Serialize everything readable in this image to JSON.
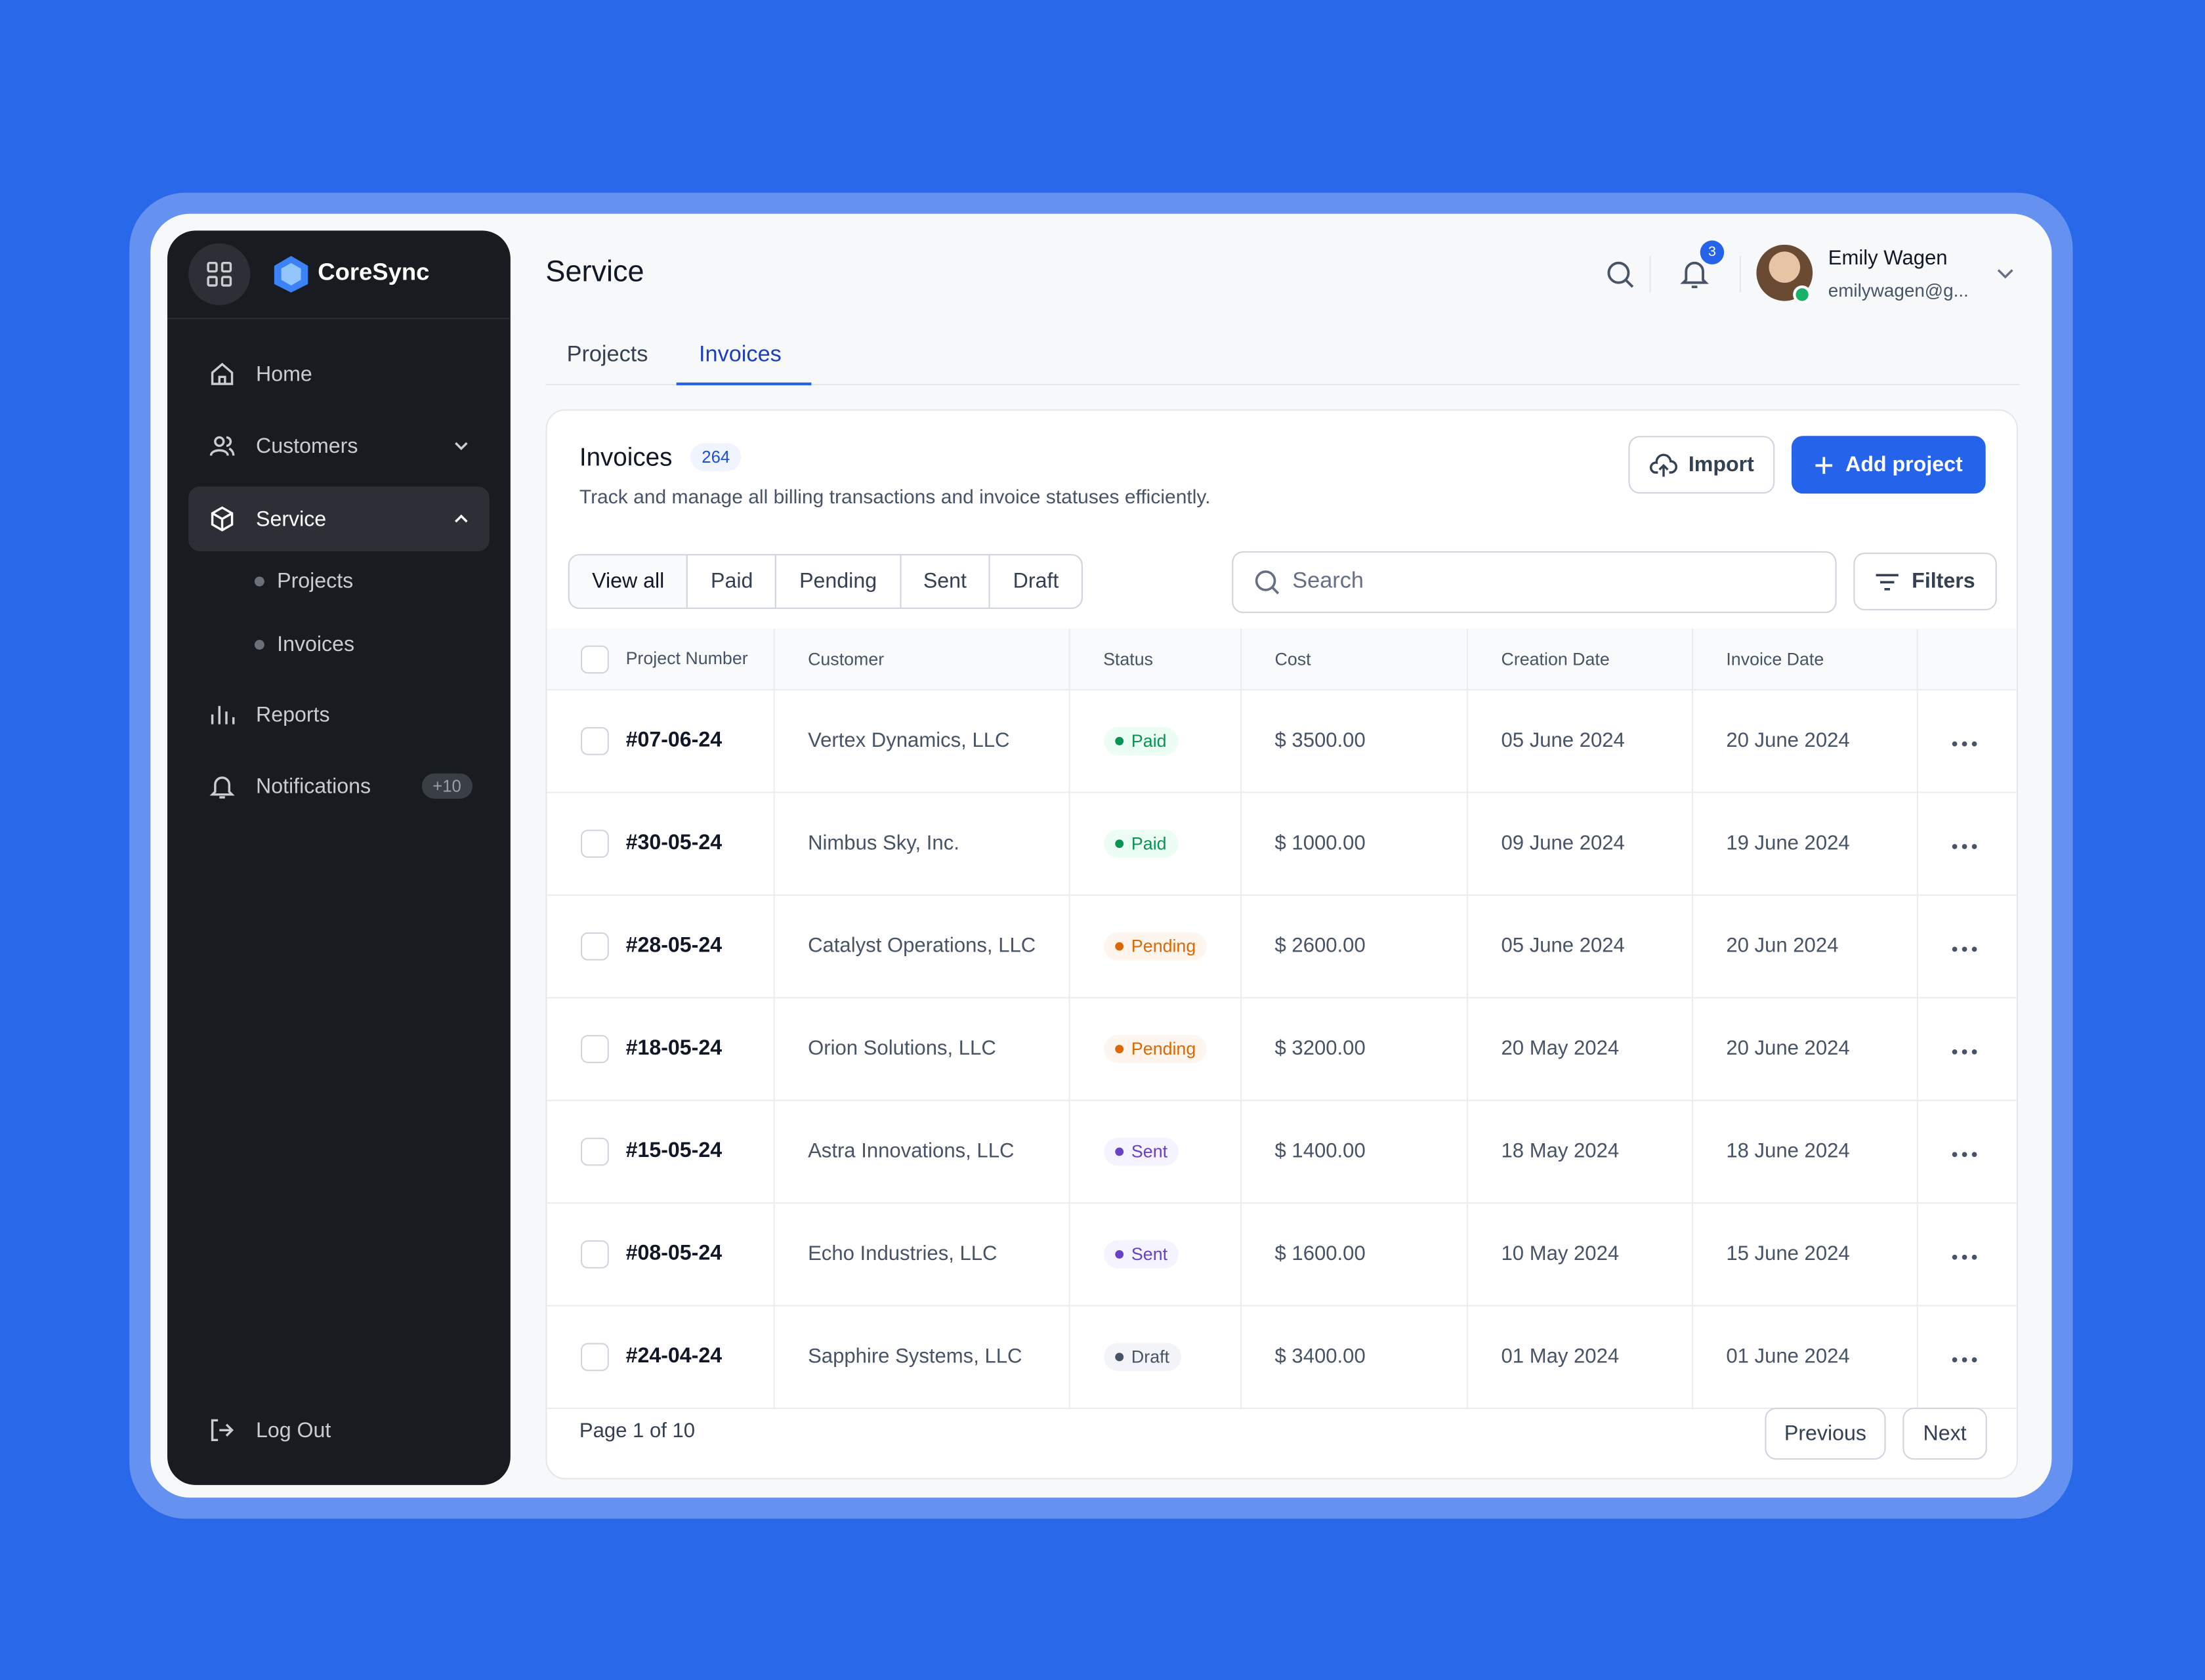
{
  "sidebar": {
    "brand": "CoreSync",
    "nav": [
      {
        "label": "Home"
      },
      {
        "label": "Customers"
      },
      {
        "label": "Service",
        "children": [
          "Projects",
          "Invoices"
        ]
      },
      {
        "label": "Reports"
      },
      {
        "label": "Notifications",
        "badge": "+10"
      }
    ],
    "logout": "Log Out"
  },
  "header": {
    "title": "Service",
    "notification_count": 3,
    "user": {
      "name": "Emily Wagen",
      "email": "emilywagen@g..."
    }
  },
  "tabs": [
    "Projects",
    "Invoices"
  ],
  "panel": {
    "title": "Invoices",
    "count": 264,
    "description": "Track and manage all billing transactions and invoice statuses efficiently.",
    "import_button": "Import",
    "add_button": "Add project",
    "filters": [
      "View all",
      "Paid",
      "Pending",
      "Sent",
      "Draft"
    ],
    "search_placeholder": "Search",
    "filters_button": "Filters"
  },
  "table": {
    "columns": [
      "Project Number",
      "Customer",
      "Status",
      "Cost",
      "Creation Date",
      "Invoice Date"
    ],
    "rows": [
      {
        "cells": [
          "#07-06-24",
          "Vertex Dynamics, LLC",
          "Paid",
          "$ 3500.00",
          "05 June 2024",
          "20 June 2024"
        ],
        "status_color": "#079455",
        "status_bg": "#ecfdf3"
      },
      {
        "cells": [
          "#30-05-24",
          "Nimbus Sky, Inc.",
          "Paid",
          "$ 1000.00",
          "09 June 2024",
          "19 June 2024"
        ],
        "status_color": "#079455",
        "status_bg": "#ecfdf3"
      },
      {
        "cells": [
          "#28-05-24",
          "Catalyst Operations, LLC",
          "Pending",
          "$ 2600.00",
          "05 June 2024",
          "20 Jun 2024"
        ],
        "status_color": "#dc6803",
        "status_bg": "#fef6ee"
      },
      {
        "cells": [
          "#18-05-24",
          "Orion Solutions, LLC",
          "Pending",
          "$ 3200.00",
          "20 May 2024",
          "20 June 2024"
        ],
        "status_color": "#dc6803",
        "status_bg": "#fef6ee"
      },
      {
        "cells": [
          "#15-05-24",
          "Astra Innovations, LLC",
          "Sent",
          "$ 1400.00",
          "18 May 2024",
          "18 June 2024"
        ],
        "status_color": "#6941c6",
        "status_bg": "#f4f3ff"
      },
      {
        "cells": [
          "#08-05-24",
          "Echo Industries, LLC",
          "Sent",
          "$ 1600.00",
          "10 May 2024",
          "15 June 2024"
        ],
        "status_color": "#6941c6",
        "status_bg": "#f4f3ff"
      },
      {
        "cells": [
          "#24-04-24",
          "Sapphire Systems, LLC",
          "Draft",
          "$ 3400.00",
          "01 May 2024",
          "01 June 2024"
        ],
        "status_color": "#475467",
        "status_bg": "#f2f4f7"
      }
    ]
  },
  "pagination": {
    "page": "Page 1 of 10",
    "previous": "Previous",
    "next": "Next"
  }
}
